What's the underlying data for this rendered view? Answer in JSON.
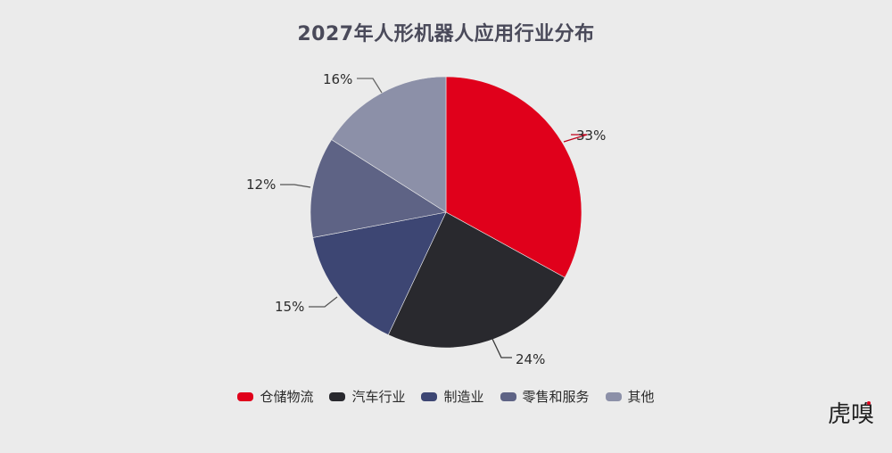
{
  "title": "2027年人形机器人应用行业分布",
  "watermark": "虎嗅",
  "legend": [
    {
      "label": "仓储物流",
      "color": "#e0001b"
    },
    {
      "label": "汽车行业",
      "color": "#29292e"
    },
    {
      "label": "制造业",
      "color": "#3d4673"
    },
    {
      "label": "零售和服务",
      "color": "#5e6385"
    },
    {
      "label": "其他",
      "color": "#8c90a8"
    }
  ],
  "labels": {
    "s0": "33%",
    "s1": "24%",
    "s2": "15%",
    "s3": "12%",
    "s4": "16%"
  },
  "chart_data": {
    "type": "pie",
    "title": "2027年人形机器人应用行业分布",
    "categories": [
      "仓储物流",
      "汽车行业",
      "制造业",
      "零售和服务",
      "其他"
    ],
    "values": [
      33,
      24,
      15,
      12,
      16
    ],
    "unit": "%",
    "colors": [
      "#e0001b",
      "#29292e",
      "#3d4673",
      "#5e6385",
      "#8c90a8"
    ],
    "start_angle": "12 o'clock, clockwise",
    "legend_position": "bottom"
  }
}
